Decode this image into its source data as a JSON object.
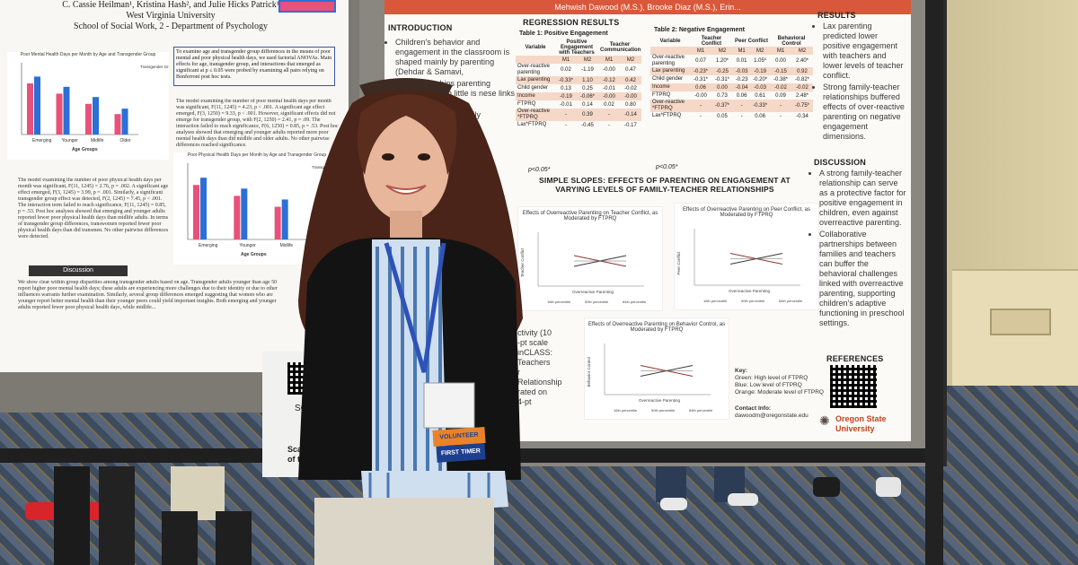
{
  "left_poster": {
    "header_line1": "C. Cassie Heilman¹, Kristina Hash², and Julie Hicks Patrick¹",
    "header_line2": "West Virginia University",
    "header_line3": "School of Social Work, 2 - Department of Psychology",
    "methods_box": "To examine age and transgender group differences in the means of poor mental and poor physical health days, we used factorial ANOVAs. Main effects for age, transgender group, and interactions that emerged as significant at p ≤ 0.05 were probed by examining all pairs relying on Bonferroni post hoc tests.",
    "chart1_title": "Poor Mental Health Days per Month by Age and Transgender Group",
    "chart2_title": "Poor Physical Health Days per Month by Age and Transgender Group",
    "chart_legend_title": "Transgender Group",
    "x_label": "Age Groups",
    "categories": [
      "Emerging",
      "Younger",
      "Midlife",
      "Older"
    ],
    "chart2_categories": [
      "Emerging",
      "Younger",
      "Midlife"
    ],
    "mental_text": "The model examining the number of poor mental health days per month was significant, F(11, 1245) = 4.23, p < .001. A significant age effect emerged, F(3, 1250) = 9.33, p < .001. However, significant effects did not emerge for transgender group, with F(2, 1250) = 2.41, p = .09. The interaction failed to reach significance, F(6, 1250) = 0.85, p = .53. Post hoc analyses showed that emerging and younger adults reported more poor mental health days than did midlife and older adults. No other pairwise differences reached significance.",
    "physical_text": "The model examining the number of poor physical health days per month was significant, F(11, 1245) = 2.76, p = .002. A significant age effect emerged, F(3, 1245) = 3.99, p = .001. Similarly, a significant transgender group effect was detected, F(2, 1245) = 7.45, p < .001. The interaction term failed to reach significance, F(11, 1245) = 0.85, p = .53. Post hoc analyses showed that emerging and younger adults reported fewer poor physical health days than midlife adults. In terms of transgender group differences, transwomen reported fewer poor physical health days than did transmen. No other pairwise differences were detected.",
    "discussion_label": "Discussion",
    "discussion_text": "We show clear within group disparities among transgender adults based on age. Transgender adults younger than age 50 report higher poor mental health days; these adults are experiencing more challenges due to their identity or due to other influences warrants further examination. Similarly, several group differences emerged suggesting that women who are younger report better mental health than their younger peers could yield important insights. Both emerging and younger adults reported fewer poor physical health days, while midlife...",
    "qr_scan": "SCA",
    "qr_caption": "Scan fo copy of t"
  },
  "right_poster": {
    "authors": "Mehwish Dawood (M.S.), Brooke Diaz (M.S.), Erin...",
    "intro_heading": "INTRODUCTION",
    "intro_bullets": [
      "Children's behavior and engagement in the classroom is shaped mainly by parenting (Dehdar & Samavi,",
      "her relationships parenting hoolers'' though little is nese links (Liu",
      "relationships ers'' family moderate en parenting",
      "ent in early ttings."
    ],
    "method_fragments": [
      "ctivity (10",
      "-pt scale",
      "inCLASS:",
      "Teachers",
      "r Relationship",
      "rated on 4-pt"
    ],
    "regression_heading": "REGRESSION RESULTS",
    "table1_title": "Table 1: Positive Engagement",
    "table1_cols": [
      "Variable",
      "Positive Engagement with Teachers",
      "Teacher Communication"
    ],
    "table1_subcols": [
      "M1",
      "M2",
      "M1",
      "M2"
    ],
    "table1_rows": [
      [
        "Over-reactive parenting",
        "0.02",
        "-1.19",
        "-0.00",
        "0.47"
      ],
      [
        "Lax parenting",
        "-0.33*",
        "1.10",
        "-0.12",
        "0.42"
      ],
      [
        "Child gender",
        "0.13",
        "0.25",
        "-0.01",
        "-0.02"
      ],
      [
        "Income",
        "-0.19",
        "-0.06*",
        "-0.00",
        "-0.00"
      ],
      [
        "FTPRQ",
        "-0.01",
        "0.14",
        "0.02",
        "0.80"
      ],
      [
        "Over-reactive *FTPRQ",
        "-",
        "0.39",
        "-",
        "-0.14"
      ],
      [
        "Lax*FTPRQ",
        "-",
        "-0.45",
        "-",
        "-0.17"
      ]
    ],
    "table1_note": "p<0.05*",
    "table2_title": "Table 2: Negative Engagement",
    "table2_cols": [
      "Variable",
      "Teacher Conflict",
      "Peer Conflict",
      "Behavioral Control"
    ],
    "table2_subcols": [
      "M1",
      "M2",
      "M1",
      "M2",
      "M1",
      "M2"
    ],
    "table2_rows": [
      [
        "Over-reactive parenting",
        "0.07",
        "1.20*",
        "0.01",
        "1.05*",
        "0.00",
        "2.40*"
      ],
      [
        "Lax parenting",
        "-0.23*",
        "-0.25",
        "-0.03",
        "-0.19",
        "-0.15",
        "0.92"
      ],
      [
        "Child gender",
        "-0.31*",
        "-0.31*",
        "-0.23",
        "-0.20*",
        "-0.38*",
        "-0.82*"
      ],
      [
        "Income",
        "0.06",
        "0.00",
        "-0.04",
        "-0.03",
        "-0.02",
        "-0.02"
      ],
      [
        "FTPRQ",
        "-0.00",
        "0.73",
        "0.06",
        "0.61",
        "0.09",
        "2.48*"
      ],
      [
        "Over-reactive *FTPRQ",
        "-",
        "-0.37*",
        "-",
        "-0.33*",
        "-",
        "-0.75*"
      ],
      [
        "Lax*FTPRQ",
        "-",
        "0.05",
        "-",
        "0.06",
        "-",
        "-0.34"
      ]
    ],
    "table2_note": "p<0.05*",
    "slopes_heading": "SIMPLE SLOPES: EFFECTS OF PARENTING ON ENGAGEMENT AT VARYING LEVELS OF FAMILY-TEACHER RELATIONSHIPS",
    "slope_chart1_title": "Effects of Overreactive Parenting on Teacher Conflict, as Moderated by FTPRQ",
    "slope_chart2_title": "Effects of Overreactive Parenting on Peer Conflict, as Moderated by FTPRQ",
    "slope_chart3_title": "Effects of Overreactive Parenting on Behavior Control, as Moderated by FTPRQ",
    "slope_chart1_ylabel": "Teacher Conflict",
    "slope_chart2_ylabel": "Peer Conflict",
    "slope_chart3_ylabel": "Behavior Control",
    "slope_xlabel": "Overreactive Parenting",
    "slope_legend": [
      "16th percentile",
      "50th percentile",
      "84th percentile"
    ],
    "results_heading": "RESULTS",
    "results_bullets": [
      "Lax parenting predicted lower positive engagement with teachers and lower levels of teacher conflict.",
      "Strong family-teacher relationships buffered effects of over-reactive parenting on negative engagement dimensions."
    ],
    "discussion_heading": "DISCUSSION",
    "discussion_bullets": [
      "A strong family-teacher relationship can serve as a protective factor for positive engagement in children, even against overreactive parenting.",
      "Collaborative partnerships between families and teachers can buffer the behavioral challenges linked with overreactive parenting, supporting children's adaptive functioning in preschool settings."
    ],
    "references_heading": "REFERENCES",
    "key_title": "Key:",
    "key_lines": [
      "Green: High level of FTPRQ",
      "Blue: Low level of FTPRQ",
      "Orange: Moderate level of FTPRQ"
    ],
    "contact_label": "Contact Info:",
    "contact_email": "dawoodm@oregonstate.edu",
    "osu_name": "Oregon State",
    "osu_sub": "University"
  },
  "badge": {
    "volunteer": "VOLUNTEER",
    "first_timer": "FIRST TIMER"
  },
  "colors": {
    "poster_accent": "#d9573a",
    "table_shade": "#f5d8c8",
    "bar_pink": "#e8517a",
    "bar_blue": "#2c6fd6",
    "osu_orange": "#c4441c",
    "badge_orange": "#e8832a",
    "badge_blue": "#1e3f8f"
  }
}
